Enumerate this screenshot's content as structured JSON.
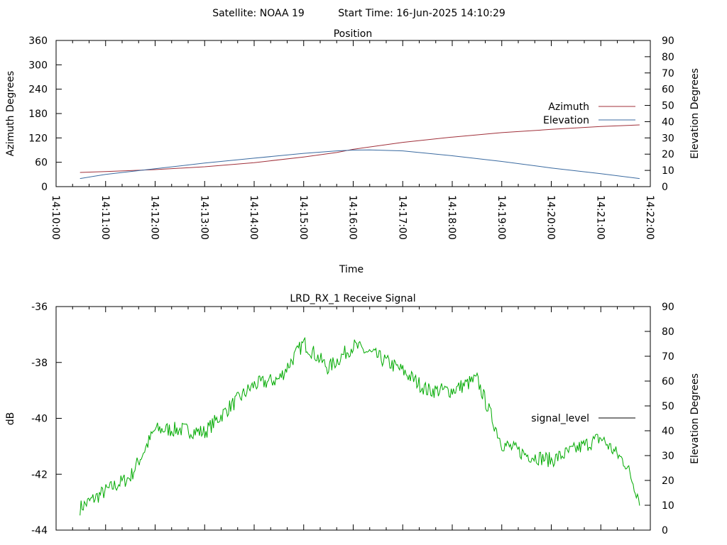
{
  "header": {
    "satellite_label": "Satellite: NOAA 19",
    "start_time_label": "Start Time: 16-Jun-2025 14:10:29"
  },
  "chart_data": [
    {
      "type": "line",
      "title": "Position",
      "xlabel": "Time",
      "ylabel": "Azimuth Degrees",
      "y2label": "Elevation Degrees",
      "xlim": [
        "14:10:00",
        "14:22:00"
      ],
      "ylim": [
        0,
        360
      ],
      "y2lim": [
        0,
        90
      ],
      "x_ticks": [
        "14:10:00",
        "14:11:00",
        "14:12:00",
        "14:13:00",
        "14:14:00",
        "14:15:00",
        "14:16:00",
        "14:17:00",
        "14:18:00",
        "14:19:00",
        "14:20:00",
        "14:21:00",
        "14:22:00"
      ],
      "y_ticks": [
        "0",
        "60",
        "120",
        "180",
        "240",
        "300",
        "360"
      ],
      "y2_ticks": [
        "0",
        "10",
        "20",
        "30",
        "40",
        "50",
        "60",
        "70",
        "80",
        "90"
      ],
      "legend_position": "right",
      "grid": false,
      "series": [
        {
          "name": "Azimuth",
          "color": "#a0303a",
          "axis": "y",
          "x": [
            "14:10:29",
            "14:11:00",
            "14:12:00",
            "14:13:00",
            "14:14:00",
            "14:15:00",
            "14:15:40",
            "14:16:00",
            "14:17:00",
            "14:18:00",
            "14:19:00",
            "14:20:00",
            "14:21:00",
            "14:21:47"
          ],
          "y": [
            35,
            37,
            42,
            49,
            59,
            73,
            84,
            92,
            109,
            122,
            133,
            141,
            148,
            152
          ]
        },
        {
          "name": "Elevation",
          "color": "#3a6aa0",
          "axis": "y2",
          "x": [
            "14:10:29",
            "14:11:00",
            "14:12:00",
            "14:13:00",
            "14:14:00",
            "14:15:00",
            "14:15:40",
            "14:16:00",
            "14:16:20",
            "14:17:00",
            "14:18:00",
            "14:19:00",
            "14:20:00",
            "14:21:00",
            "14:21:47"
          ],
          "y": [
            5,
            7.5,
            11,
            14.5,
            17.5,
            20.5,
            22,
            22.5,
            22.6,
            22,
            19,
            15.5,
            11.5,
            8,
            5
          ]
        }
      ]
    },
    {
      "type": "line",
      "title": "LRD_RX_1 Receive Signal",
      "xlabel": "",
      "ylabel": "dB",
      "y2label": "Elevation Degrees",
      "xlim": [
        "14:10:00",
        "14:22:00"
      ],
      "ylim": [
        -44,
        -36
      ],
      "y2lim": [
        0,
        90
      ],
      "y_ticks": [
        "-44",
        "-42",
        "-40",
        "-38",
        "-36"
      ],
      "y2_ticks": [
        "0",
        "10",
        "20",
        "30",
        "40",
        "50",
        "60",
        "70",
        "80",
        "90"
      ],
      "legend_position": "right",
      "grid": false,
      "series": [
        {
          "name": "signal_level",
          "legend_color": "#000000",
          "color": "#00aa00",
          "axis": "y",
          "x": [
            "14:10:29",
            "14:11:00",
            "14:11:30",
            "14:12:00",
            "14:12:30",
            "14:13:00",
            "14:13:30",
            "14:14:00",
            "14:14:30",
            "14:15:00",
            "14:15:30",
            "14:16:00",
            "14:16:30",
            "14:17:00",
            "14:17:30",
            "14:18:00",
            "14:18:30",
            "14:19:00",
            "14:19:30",
            "14:20:00",
            "14:20:30",
            "14:21:00",
            "14:21:30",
            "14:21:47"
          ],
          "y": [
            -43.2,
            -42.6,
            -42.1,
            -40.4,
            -40.4,
            -40.5,
            -39.6,
            -38.8,
            -38.6,
            -37.3,
            -38.2,
            -37.4,
            -37.8,
            -38.3,
            -39.0,
            -39.0,
            -38.6,
            -40.9,
            -41.3,
            -41.5,
            -41.1,
            -40.7,
            -41.6,
            -42.9
          ]
        }
      ]
    }
  ]
}
